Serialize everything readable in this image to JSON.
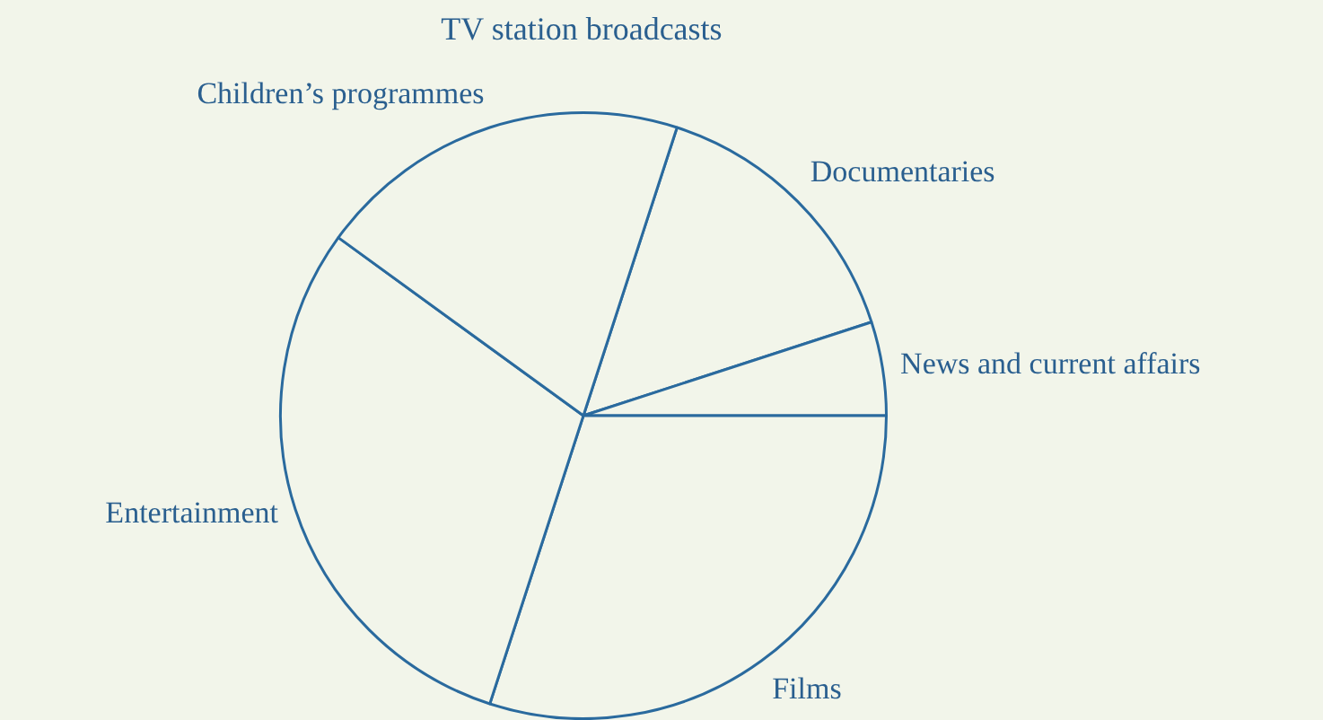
{
  "chart_data": {
    "type": "pie",
    "title": "TV station broadcasts",
    "categories": [
      "Documentaries",
      "News and current affairs",
      "Films",
      "Entertainment",
      "Children’s programmes"
    ],
    "values": [
      15,
      5,
      30,
      30,
      20
    ],
    "colors": [
      "#f2f5ea",
      "#f2f5ea",
      "#f2f5ea",
      "#f2f5ea",
      "#f2f5ea"
    ],
    "legend": false
  }
}
